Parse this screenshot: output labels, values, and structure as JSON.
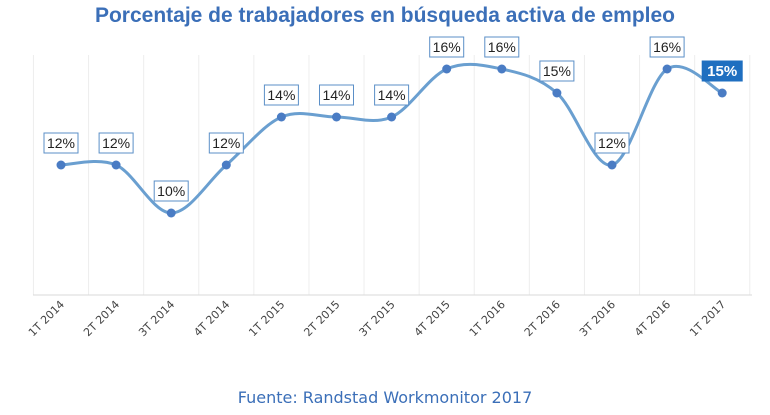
{
  "title": "Porcentaje de trabajadores en búsqueda activa de empleo",
  "source": "Fuente: Randstad Workmonitor 2017",
  "colors": {
    "title": "#3b6fb8",
    "line": "#6a9fd0",
    "point": "#4a7cc4",
    "label_border": "#5b8fc7",
    "highlight_bg": "#1f6fc0",
    "gridline": "#eeeeee"
  },
  "chart_data": {
    "type": "line",
    "title": "Porcentaje de trabajadores en búsqueda activa de empleo",
    "xlabel": "",
    "ylabel": "",
    "categories": [
      "1T 2014",
      "2T 2014",
      "3T 2014",
      "4T 2014",
      "1T 2015",
      "2T 2015",
      "3T 2015",
      "4T 2015",
      "1T 2016",
      "2T 2016",
      "3T 2016",
      "4T 2016",
      "1T 2017"
    ],
    "series": [
      {
        "values": [
          12,
          12,
          10,
          12,
          14,
          14,
          14,
          16,
          16,
          15,
          12,
          16,
          15
        ],
        "labels": [
          "12%",
          "12%",
          "10%",
          "12%",
          "14%",
          "14%",
          "14%",
          "16%",
          "16%",
          "15%",
          "12%",
          "16%",
          "15%"
        ]
      }
    ],
    "highlight_index": 12,
    "smooth": true,
    "grid": "vertical",
    "ylim": [
      7,
      17
    ]
  }
}
